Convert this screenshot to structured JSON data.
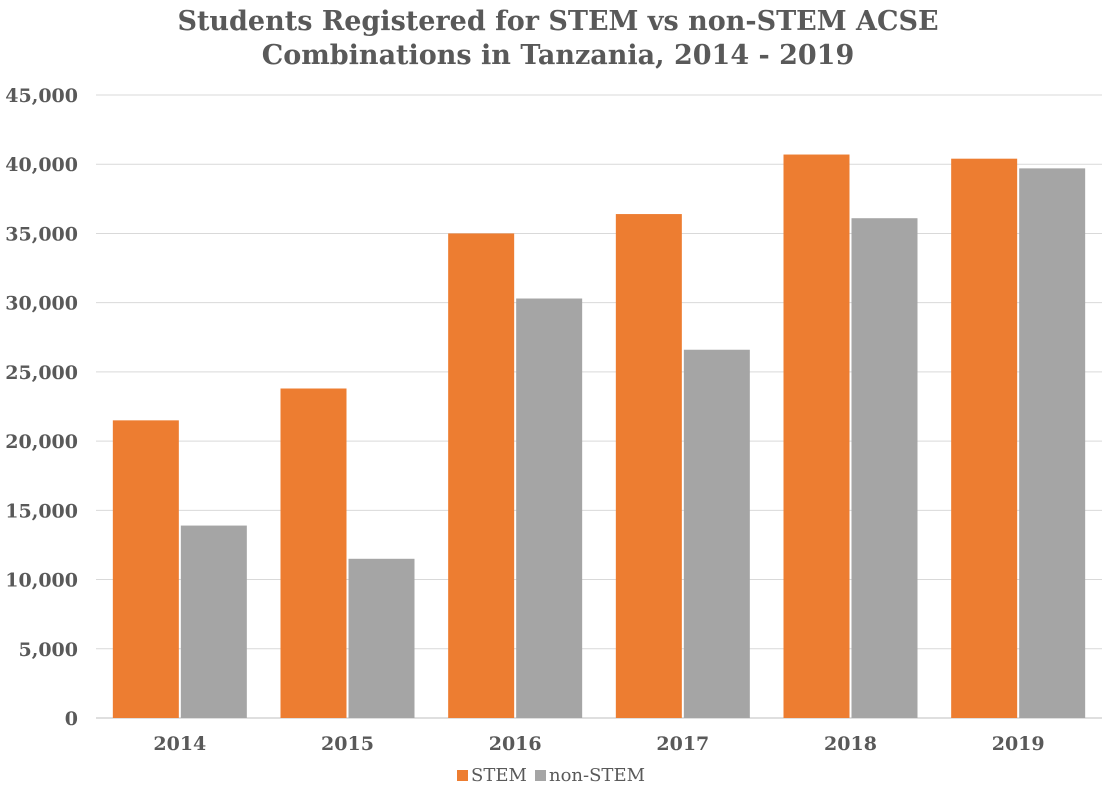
{
  "chart_data": {
    "type": "bar",
    "title_lines": [
      "Students Registered for STEM vs non-STEM ACSE",
      "Combinations in Tanzania, 2014 - 2019"
    ],
    "categories": [
      "2014",
      "2015",
      "2016",
      "2017",
      "2018",
      "2019"
    ],
    "series": [
      {
        "name": "STEM",
        "color": "#ED7D31",
        "values": [
          21500,
          23800,
          35000,
          36400,
          40700,
          40400
        ]
      },
      {
        "name": "non-STEM",
        "color": "#A5A5A5",
        "values": [
          13900,
          11500,
          30300,
          26600,
          36100,
          39700
        ]
      }
    ],
    "ylim": [
      0,
      45000
    ],
    "ytick_values": [
      0,
      5000,
      10000,
      15000,
      20000,
      25000,
      30000,
      35000,
      40000,
      45000
    ],
    "ytick_labels": [
      "0",
      "5,000",
      "10,000",
      "15,000",
      "20,000",
      "25,000",
      "30,000",
      "35,000",
      "40,000",
      "45,000"
    ],
    "xlabel": "",
    "ylabel": "",
    "grid": true,
    "legend_position": "bottom"
  }
}
